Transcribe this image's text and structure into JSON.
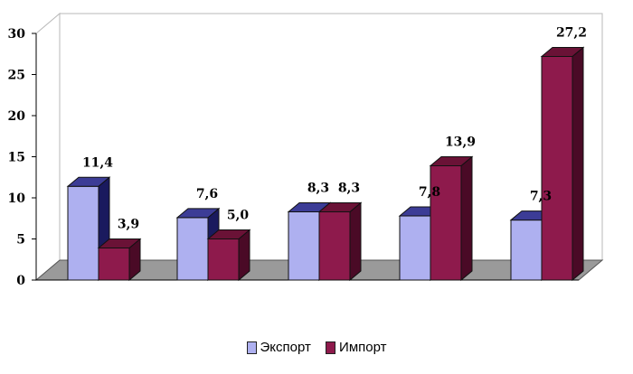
{
  "chart_data": {
    "type": "bar",
    "categories": [
      "",
      "",
      "",
      "",
      ""
    ],
    "series": [
      {
        "name": "Экспорт",
        "values": [
          11.4,
          7.6,
          8.3,
          7.8,
          7.3
        ],
        "labels": [
          "11,4",
          "7,6",
          "8,3",
          "7,8",
          "7,3"
        ]
      },
      {
        "name": "Импорт",
        "values": [
          3.9,
          5.0,
          8.3,
          13.9,
          27.2
        ],
        "labels": [
          "3,9",
          "5,0",
          "8,3",
          "13,9",
          "27,2"
        ]
      }
    ],
    "ylim": [
      0,
      30
    ],
    "yticks": [
      0,
      5,
      10,
      15,
      20,
      25,
      30
    ],
    "title": "",
    "xlabel": "",
    "ylabel": "",
    "legend_position": "bottom",
    "grid": false,
    "style": "3d-bar",
    "colors": {
      "export_front": "#aeb0f0",
      "export_side": "#1a1a5e",
      "export_top": "#3c3c96",
      "import_front": "#8e1a4c",
      "import_side": "#4a0a26",
      "import_top": "#6a1236",
      "floor": "#9a9a9a",
      "wall": "#ffffff"
    }
  }
}
